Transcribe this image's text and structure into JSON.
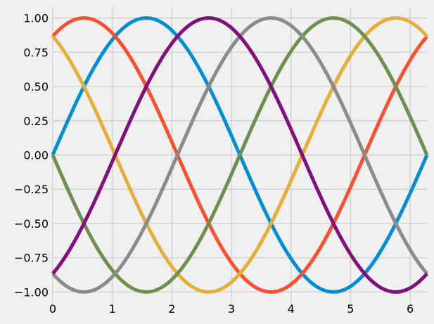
{
  "chart_data": {
    "type": "line",
    "title": "",
    "xlabel": "",
    "ylabel": "",
    "xlim": [
      0,
      6.283
    ],
    "ylim": [
      -1.08,
      1.08
    ],
    "x_ticks": [
      0,
      1,
      2,
      3,
      4,
      5,
      6
    ],
    "x_tick_labels": [
      "0",
      "1",
      "2",
      "3",
      "4",
      "5",
      "6"
    ],
    "y_ticks": [
      1.0,
      0.75,
      0.5,
      0.25,
      0.0,
      -0.25,
      -0.5,
      -0.75,
      -1.0
    ],
    "y_tick_labels": [
      "1.00",
      "0.75",
      "0.50",
      "0.25",
      "0.00",
      "−0.25",
      "−0.50",
      "−0.75",
      "−1.00"
    ],
    "grid": true,
    "background_color": "#f0f0f0",
    "grid_color": "#cbcbcb",
    "series": [
      {
        "color": "#008fd5",
        "function": "sin(x - 0)"
      },
      {
        "color": "#fc4f30",
        "function": "sin(x + 1.047)"
      },
      {
        "color": "#e5ae38",
        "function": "sin(x + 2.094)"
      },
      {
        "color": "#6d904f",
        "function": "sin(x + 3.142)"
      },
      {
        "color": "#8b8b8b",
        "function": "sin(x + 4.189)"
      },
      {
        "color": "#810f7c",
        "function": "sin(x + 5.236)"
      }
    ]
  }
}
